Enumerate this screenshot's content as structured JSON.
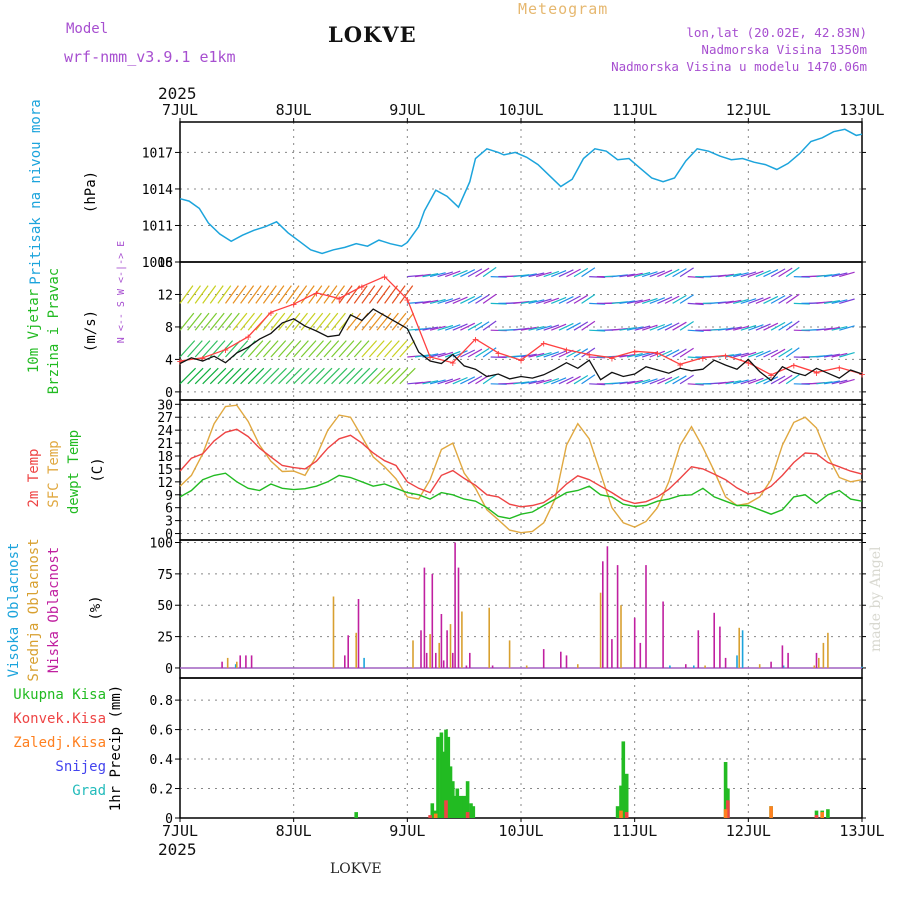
{
  "header": {
    "title": "LOKVE",
    "model_label": "Model",
    "model_name": "wrf-nmm_v3.9.1 e1km",
    "meteogram_label": "Meteogram",
    "lonlat": "lon,lat (20.02E, 42.83N)",
    "altitude": "Nadmorska Visina 1350m",
    "model_altitude": "Nadmorska Visina u modelu 1470.06m",
    "year": "2025",
    "footer_title": "LOKVE",
    "watermark": "made by Angel"
  },
  "colors": {
    "pressure": "#1ca4dc",
    "wind_speed": "#111111",
    "gust": "#ff4040",
    "temp2m": "#ee4444",
    "sfc": "#e0a840",
    "dewpt": "#22bb22",
    "cloud_high": "#1ca4dc",
    "cloud_mid": "#d8a030",
    "cloud_low": "#c020a0",
    "precip_total": "#22bb22",
    "precip_conv": "#ee4444",
    "precip_frozen": "#ff8020",
    "snow": "#4444ee",
    "graupel": "#22bbbb"
  },
  "chart_data": [
    {
      "type": "line",
      "name": "pressure",
      "ylabel": "Pritisak na nivou mora",
      "unit": "(hPa)",
      "ylim": [
        1008,
        1019.5
      ],
      "yticks": [
        "1008",
        "1011",
        "1014",
        "1017"
      ],
      "x_days": [
        "7JUL",
        "8JUL",
        "9JUL",
        "10JUL",
        "11JUL",
        "12JUL",
        "13JUL"
      ],
      "grid": true,
      "series": [
        {
          "x": [
            0,
            0.08,
            0.17,
            0.25,
            0.35,
            0.45,
            0.55,
            0.65,
            0.75,
            0.85,
            0.95,
            1.05,
            1.15,
            1.25,
            1.35,
            1.45,
            1.55,
            1.65,
            1.75,
            1.85,
            1.95,
            2.0,
            2.1,
            2.15,
            2.25,
            2.35,
            2.45,
            2.55,
            2.6,
            2.7,
            2.8,
            2.85,
            2.95,
            3.05,
            3.15,
            3.25,
            3.35,
            3.45,
            3.55,
            3.65,
            3.75,
            3.85,
            3.95,
            4.05,
            4.15,
            4.25,
            4.35,
            4.45,
            4.55,
            4.65,
            4.75,
            4.85,
            4.95,
            5.05,
            5.15,
            5.25,
            5.35,
            5.45,
            5.55,
            5.65,
            5.75,
            5.85,
            5.95,
            6.0
          ],
          "y": [
            1013.2,
            1013.0,
            1012.4,
            1011.2,
            1010.3,
            1009.7,
            1010.2,
            1010.6,
            1010.9,
            1011.3,
            1010.4,
            1009.7,
            1009.0,
            1008.7,
            1009.0,
            1009.2,
            1009.5,
            1009.3,
            1009.8,
            1009.5,
            1009.3,
            1009.6,
            1010.9,
            1012.2,
            1013.9,
            1013.4,
            1012.5,
            1014.6,
            1016.5,
            1017.3,
            1017.0,
            1016.8,
            1017.0,
            1016.6,
            1016.0,
            1015.1,
            1014.2,
            1014.8,
            1016.5,
            1017.3,
            1017.1,
            1016.4,
            1016.5,
            1015.7,
            1014.9,
            1014.6,
            1014.9,
            1016.3,
            1017.3,
            1017.1,
            1016.7,
            1016.4,
            1016.5,
            1016.2,
            1016.0,
            1015.6,
            1016.1,
            1016.9,
            1017.9,
            1018.2,
            1018.7,
            1018.9,
            1018.4,
            1018.5
          ]
        }
      ]
    },
    {
      "type": "line",
      "name": "wind",
      "ylabel": "10m Vjetar Brzina i Pravac",
      "unit": "(m/s)",
      "direction_legend": "N <-- S  W <-|-> E",
      "ylim": [
        -1,
        16
      ],
      "yticks": [
        "0",
        "4",
        "8",
        "12",
        "16"
      ],
      "grid": true,
      "series": [
        {
          "name": "speed",
          "x": [
            0,
            0.1,
            0.2,
            0.3,
            0.4,
            0.5,
            0.6,
            0.7,
            0.8,
            0.9,
            1.0,
            1.1,
            1.2,
            1.3,
            1.4,
            1.5,
            1.6,
            1.7,
            1.8,
            1.9,
            2.0,
            2.1,
            2.2,
            2.3,
            2.4,
            2.5,
            2.6,
            2.7,
            2.8,
            2.9,
            3.0,
            3.1,
            3.2,
            3.3,
            3.4,
            3.5,
            3.6,
            3.7,
            3.8,
            3.9,
            4.0,
            4.1,
            4.2,
            4.3,
            4.4,
            4.5,
            4.6,
            4.7,
            4.8,
            4.9,
            5.0,
            5.1,
            5.2,
            5.3,
            5.4,
            5.5,
            5.6,
            5.7,
            5.8,
            5.9,
            6.0
          ],
          "y": [
            3.5,
            4.2,
            3.8,
            4.4,
            3.6,
            4.8,
            5.5,
            6.5,
            7.2,
            8.5,
            9.0,
            8.1,
            7.5,
            6.8,
            7.0,
            9.5,
            8.8,
            10.2,
            9.4,
            8.6,
            7.8,
            4.9,
            3.8,
            3.5,
            4.6,
            3.2,
            2.8,
            1.9,
            2.2,
            1.6,
            1.9,
            1.7,
            2.1,
            2.8,
            3.6,
            2.9,
            3.9,
            1.5,
            2.4,
            1.9,
            2.2,
            3.1,
            2.7,
            2.3,
            2.9,
            2.6,
            2.8,
            3.9,
            3.3,
            2.8,
            4.0,
            2.5,
            1.4,
            3.1,
            2.4,
            2.0,
            2.9,
            2.3,
            1.7,
            2.7,
            2.2
          ]
        },
        {
          "name": "gust",
          "x": [
            0,
            0.2,
            0.4,
            0.6,
            0.8,
            1.0,
            1.2,
            1.4,
            1.6,
            1.8,
            2.0,
            2.2,
            2.4,
            2.6,
            2.8,
            3.0,
            3.2,
            3.4,
            3.6,
            3.8,
            4.0,
            4.2,
            4.4,
            4.6,
            4.8,
            5.0,
            5.2,
            5.4,
            5.6,
            5.8,
            6.0
          ],
          "y": [
            3.8,
            4.2,
            5.2,
            6.8,
            9.8,
            10.8,
            12.2,
            11.5,
            13.0,
            14.2,
            11.4,
            4.3,
            3.6,
            6.5,
            4.8,
            3.9,
            6.0,
            5.2,
            4.6,
            4.2,
            5.0,
            4.8,
            3.4,
            4.2,
            4.5,
            3.6,
            2.1,
            3.3,
            2.4,
            3.0,
            2.2
          ]
        }
      ]
    },
    {
      "type": "line",
      "name": "temperature",
      "ylabel": [
        "2m Temp",
        "SFC Temp",
        "dewpt Temp"
      ],
      "unit": "(C)",
      "ylim": [
        -1.5,
        31
      ],
      "yticks": [
        "0",
        "3",
        "6",
        "9",
        "12",
        "15",
        "18",
        "21",
        "24",
        "27",
        "30"
      ],
      "grid": true,
      "series": [
        {
          "name": "2m Temp",
          "x": [
            0,
            0.1,
            0.2,
            0.3,
            0.4,
            0.5,
            0.6,
            0.7,
            0.8,
            0.9,
            1.0,
            1.1,
            1.2,
            1.3,
            1.4,
            1.5,
            1.6,
            1.7,
            1.8,
            1.9,
            2.0,
            2.1,
            2.2,
            2.3,
            2.4,
            2.5,
            2.6,
            2.7,
            2.8,
            2.9,
            3.0,
            3.1,
            3.2,
            3.3,
            3.4,
            3.5,
            3.6,
            3.7,
            3.8,
            3.9,
            4.0,
            4.1,
            4.2,
            4.3,
            4.4,
            4.5,
            4.6,
            4.7,
            4.8,
            4.9,
            5.0,
            5.1,
            5.2,
            5.3,
            5.4,
            5.5,
            5.6,
            5.7,
            5.8,
            5.9,
            6.0
          ],
          "y": [
            14.5,
            17.5,
            18.5,
            21.5,
            23.5,
            24.2,
            22.5,
            19.8,
            17.8,
            15.8,
            15.3,
            15.0,
            16.8,
            19.8,
            22.0,
            22.8,
            21.0,
            18.7,
            16.9,
            15.8,
            12.0,
            10.5,
            9.5,
            13.5,
            14.6,
            12.8,
            11.2,
            9.0,
            8.5,
            6.8,
            6.2,
            6.5,
            7.2,
            9.0,
            11.5,
            13.4,
            12.5,
            11.0,
            9.5,
            7.8,
            7.0,
            7.4,
            8.5,
            10.3,
            12.8,
            15.5,
            15.0,
            13.8,
            12.5,
            10.6,
            9.2,
            9.5,
            11.0,
            13.5,
            16.5,
            18.7,
            18.5,
            16.5,
            15.5,
            14.5,
            13.8
          ]
        },
        {
          "name": "SFC Temp",
          "x": [
            0,
            0.1,
            0.2,
            0.3,
            0.4,
            0.5,
            0.6,
            0.7,
            0.8,
            0.9,
            1.0,
            1.1,
            1.2,
            1.3,
            1.4,
            1.5,
            1.6,
            1.7,
            1.8,
            1.9,
            2.0,
            2.1,
            2.2,
            2.3,
            2.4,
            2.5,
            2.6,
            2.7,
            2.8,
            2.9,
            3.0,
            3.1,
            3.2,
            3.3,
            3.4,
            3.5,
            3.6,
            3.7,
            3.8,
            3.9,
            4.0,
            4.1,
            4.2,
            4.3,
            4.4,
            4.5,
            4.6,
            4.7,
            4.8,
            4.9,
            5.0,
            5.1,
            5.2,
            5.3,
            5.4,
            5.5,
            5.6,
            5.7,
            5.8,
            5.9,
            6.0
          ],
          "y": [
            11.0,
            13.5,
            18.5,
            25.5,
            29.5,
            29.8,
            26.0,
            20.5,
            16.8,
            14.4,
            14.5,
            13.5,
            18.0,
            24.0,
            27.5,
            27.0,
            22.5,
            17.8,
            15.5,
            12.7,
            8.5,
            8.0,
            12.5,
            19.5,
            21.0,
            14.0,
            10.5,
            5.5,
            3.2,
            0.8,
            0.2,
            0.5,
            2.5,
            8.0,
            20.5,
            25.5,
            22.0,
            14.0,
            6.0,
            2.5,
            1.5,
            2.8,
            6.0,
            12.0,
            20.5,
            24.8,
            20.0,
            14.5,
            8.5,
            6.5,
            7.0,
            8.5,
            12.5,
            20.5,
            25.8,
            27.0,
            24.5,
            18.0,
            13.0,
            12.0,
            12.5
          ]
        },
        {
          "name": "dewpt Temp",
          "x": [
            0,
            0.1,
            0.2,
            0.3,
            0.4,
            0.5,
            0.6,
            0.7,
            0.8,
            0.9,
            1.0,
            1.1,
            1.2,
            1.3,
            1.4,
            1.5,
            1.6,
            1.7,
            1.8,
            1.9,
            2.0,
            2.1,
            2.2,
            2.3,
            2.4,
            2.5,
            2.6,
            2.7,
            2.8,
            2.9,
            3.0,
            3.1,
            3.2,
            3.3,
            3.4,
            3.5,
            3.6,
            3.7,
            3.8,
            3.9,
            4.0,
            4.1,
            4.2,
            4.3,
            4.4,
            4.5,
            4.6,
            4.7,
            4.8,
            4.9,
            5.0,
            5.1,
            5.2,
            5.3,
            5.4,
            5.5,
            5.6,
            5.7,
            5.8,
            5.9,
            6.0
          ],
          "y": [
            8.5,
            10.0,
            12.5,
            13.5,
            14.0,
            12.0,
            10.5,
            10.0,
            11.5,
            10.5,
            10.2,
            10.4,
            11.0,
            12.0,
            13.5,
            13.0,
            12.0,
            11.0,
            11.5,
            10.5,
            9.5,
            9.0,
            8.0,
            9.5,
            9.0,
            8.0,
            7.5,
            6.0,
            4.0,
            3.5,
            4.5,
            5.0,
            6.5,
            8.0,
            9.5,
            10.0,
            11.0,
            9.0,
            8.5,
            6.8,
            6.3,
            6.5,
            7.5,
            8.0,
            8.8,
            9.0,
            10.5,
            8.5,
            7.5,
            6.5,
            6.5,
            5.5,
            4.5,
            5.5,
            8.5,
            9.0,
            7.0,
            9.0,
            10.0,
            8.0,
            7.5
          ]
        }
      ]
    },
    {
      "type": "bar",
      "name": "cloud_cover",
      "ylabel": [
        "Visoka Oblacnost",
        "Srednja Oblacnost",
        "Niska Oblacnost"
      ],
      "unit": "(%)",
      "ylim": [
        -8,
        102
      ],
      "yticks": [
        "0",
        "25",
        "50",
        "75",
        "100"
      ],
      "grid": true,
      "series": [
        {
          "name": "Visoka Oblacnost",
          "x": [
            0.49,
            1.62,
            4.31,
            4.52,
            4.9,
            4.95,
            5.31,
            6.0
          ],
          "values": [
            3,
            8,
            2,
            2,
            10,
            30,
            2,
            1
          ]
        },
        {
          "name": "Srednja Oblacnost",
          "x": [
            0.42,
            0.5,
            1.35,
            1.55,
            2.05,
            2.2,
            2.28,
            2.38,
            2.48,
            2.72,
            2.9,
            3.05,
            3.5,
            3.7,
            3.88,
            4.62,
            4.92,
            5.1,
            5.58,
            5.62,
            5.66,
            5.7
          ],
          "values": [
            8,
            5,
            57,
            28,
            22,
            27,
            20,
            35,
            45,
            48,
            22,
            2,
            3,
            60,
            50,
            2,
            32,
            3,
            2,
            8,
            20,
            28
          ]
        },
        {
          "name": "Niska Oblacnost",
          "x": [
            0.37,
            0.53,
            0.58,
            0.63,
            1.45,
            1.48,
            1.57,
            2.12,
            2.15,
            2.17,
            2.22,
            2.25,
            2.3,
            2.32,
            2.35,
            2.4,
            2.42,
            2.45,
            2.52,
            2.55,
            2.75,
            3.2,
            3.35,
            3.4,
            3.72,
            3.76,
            3.8,
            3.85,
            4.0,
            4.05,
            4.1,
            4.25,
            4.45,
            4.56,
            4.7,
            4.75,
            4.8,
            5.2,
            5.3,
            5.35,
            5.6
          ],
          "values": [
            5,
            10,
            10,
            10,
            10,
            26,
            55,
            30,
            80,
            12,
            75,
            12,
            43,
            6,
            30,
            12,
            100,
            80,
            2,
            12,
            2,
            15,
            13,
            10,
            85,
            97,
            23,
            82,
            40,
            20,
            82,
            53,
            3,
            30,
            44,
            33,
            8,
            5,
            18,
            12,
            12
          ]
        }
      ]
    },
    {
      "type": "bar",
      "name": "precipitation",
      "ylabel": "1hr Precip (mm)",
      "legend": [
        "Ukupna Kisa",
        "Konvek.Kisa",
        "Zaledj.Kisa",
        "Snijeg",
        "Grad"
      ],
      "ylim": [
        0,
        0.95
      ],
      "yticks": [
        "0",
        "0.2",
        "0.4",
        "0.6",
        "0.8"
      ],
      "grid": true,
      "series": [
        {
          "name": "Ukupna Kisa",
          "x": [
            1.55,
            2.22,
            2.25,
            2.27,
            2.3,
            2.32,
            2.34,
            2.36,
            2.38,
            2.4,
            2.42,
            2.44,
            2.47,
            2.5,
            2.53,
            2.56,
            2.58,
            3.85,
            3.88,
            3.9,
            3.93,
            4.8,
            4.82,
            5.2,
            5.6,
            5.65,
            5.7
          ],
          "values": [
            0.04,
            0.1,
            0.05,
            0.55,
            0.58,
            0.45,
            0.6,
            0.55,
            0.35,
            0.25,
            0.15,
            0.2,
            0.15,
            0.15,
            0.25,
            0.1,
            0.08,
            0.08,
            0.22,
            0.52,
            0.3,
            0.38,
            0.2,
            0.08,
            0.05,
            0.05,
            0.06
          ]
        },
        {
          "name": "Konvek.Kisa",
          "x": [
            2.2,
            2.34,
            2.53,
            3.93,
            4.82,
            5.6
          ],
          "values": [
            0.02,
            0.12,
            0.04,
            0.04,
            0.12,
            0.02
          ]
        },
        {
          "name": "Zaledj.Kisa",
          "x": [
            2.25,
            3.88,
            4.8,
            5.2,
            5.65
          ],
          "values": [
            0.03,
            0.05,
            0.06,
            0.08,
            0.04
          ]
        }
      ]
    }
  ]
}
